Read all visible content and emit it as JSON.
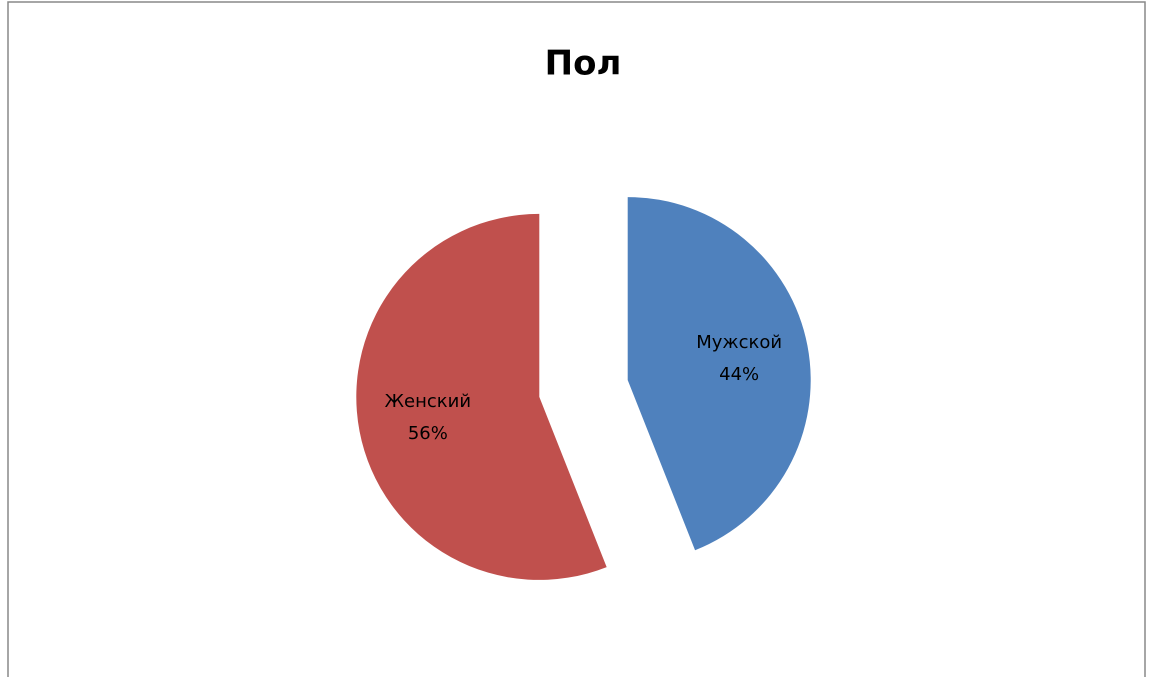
{
  "chart_data": {
    "type": "pie",
    "title": "Пол",
    "categories": [
      "Мужской",
      "Женский"
    ],
    "values": [
      44,
      56
    ],
    "value_labels": [
      "44%",
      "56%"
    ],
    "colors": [
      "#4f81bd",
      "#c0504d"
    ]
  }
}
